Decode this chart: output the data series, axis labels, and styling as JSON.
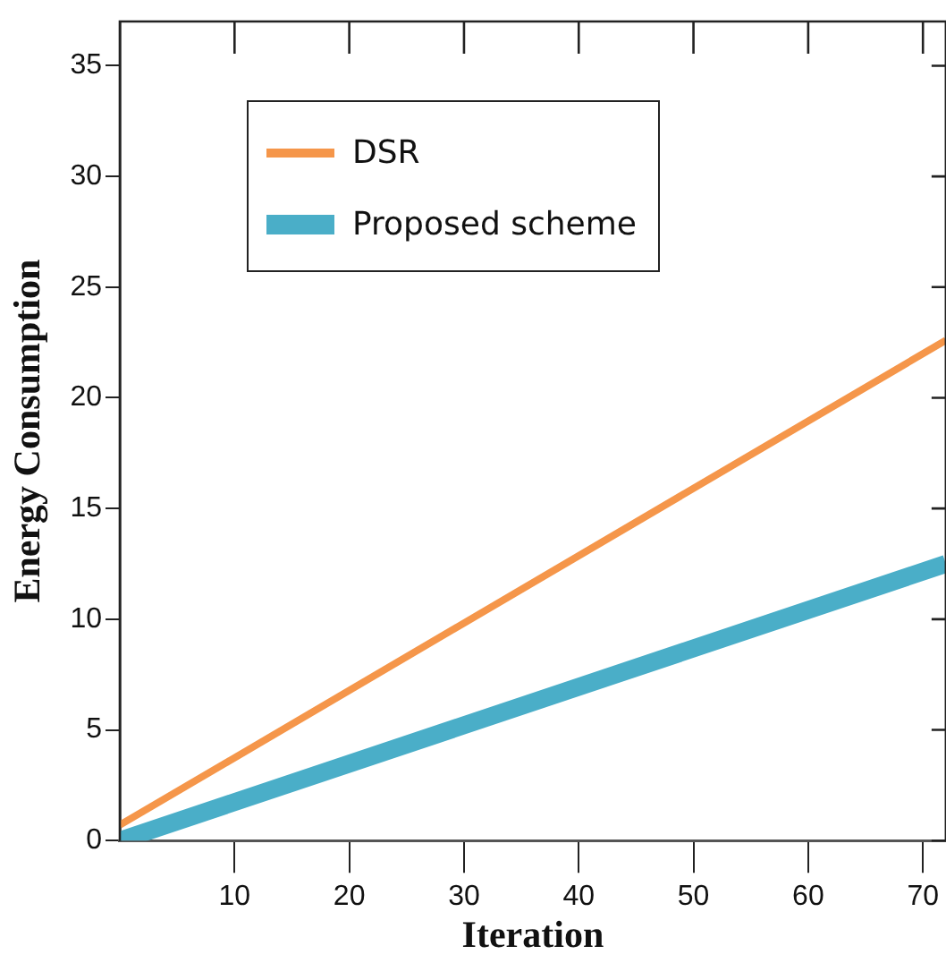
{
  "chart_data": {
    "type": "line",
    "xlabel": "Iteration",
    "ylabel": "Energy Consumption",
    "x": [
      0,
      72
    ],
    "series": [
      {
        "name": "DSR",
        "color": "#f5964a",
        "values": [
          0.7,
          22.6
        ]
      },
      {
        "name": "Proposed scheme",
        "color": "#4aaec8",
        "values": [
          0,
          12.5
        ]
      }
    ],
    "xlim": [
      0,
      72
    ],
    "xticks": [
      10,
      20,
      30,
      40,
      50,
      60,
      70
    ],
    "ylim": [
      0,
      37
    ],
    "yticks": [
      0,
      5,
      10,
      15,
      20,
      25,
      30,
      35
    ],
    "grid": false,
    "legend": "top left",
    "marker": "none",
    "line_style": "solid"
  }
}
